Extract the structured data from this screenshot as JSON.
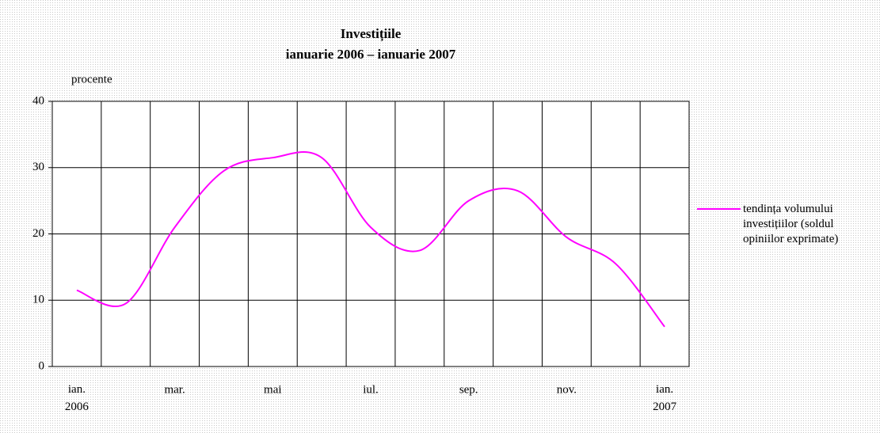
{
  "chart_data": {
    "type": "line",
    "title": "Investițiile",
    "subtitle": "ianuarie 2006 – ianuarie 2007",
    "y_label": "procente",
    "categories": [
      "ian.\n2006",
      null,
      "mar.",
      null,
      "mai",
      null,
      "iul.",
      null,
      "sep.",
      null,
      "nov.",
      null,
      "ian.\n2007"
    ],
    "series": [
      {
        "name": "tendința volumului investițiilor (soldul opiniilor exprimate)",
        "color": "#ff00ff",
        "values": [
          11.5,
          9.5,
          21,
          29.5,
          31.5,
          31.5,
          21,
          17.5,
          25,
          26.5,
          19.5,
          15.5,
          6
        ]
      }
    ],
    "ylim": [
      0,
      40
    ],
    "yticks": [
      0,
      10,
      20,
      30,
      40
    ],
    "grid": true,
    "legend": "right",
    "smooth": true
  }
}
